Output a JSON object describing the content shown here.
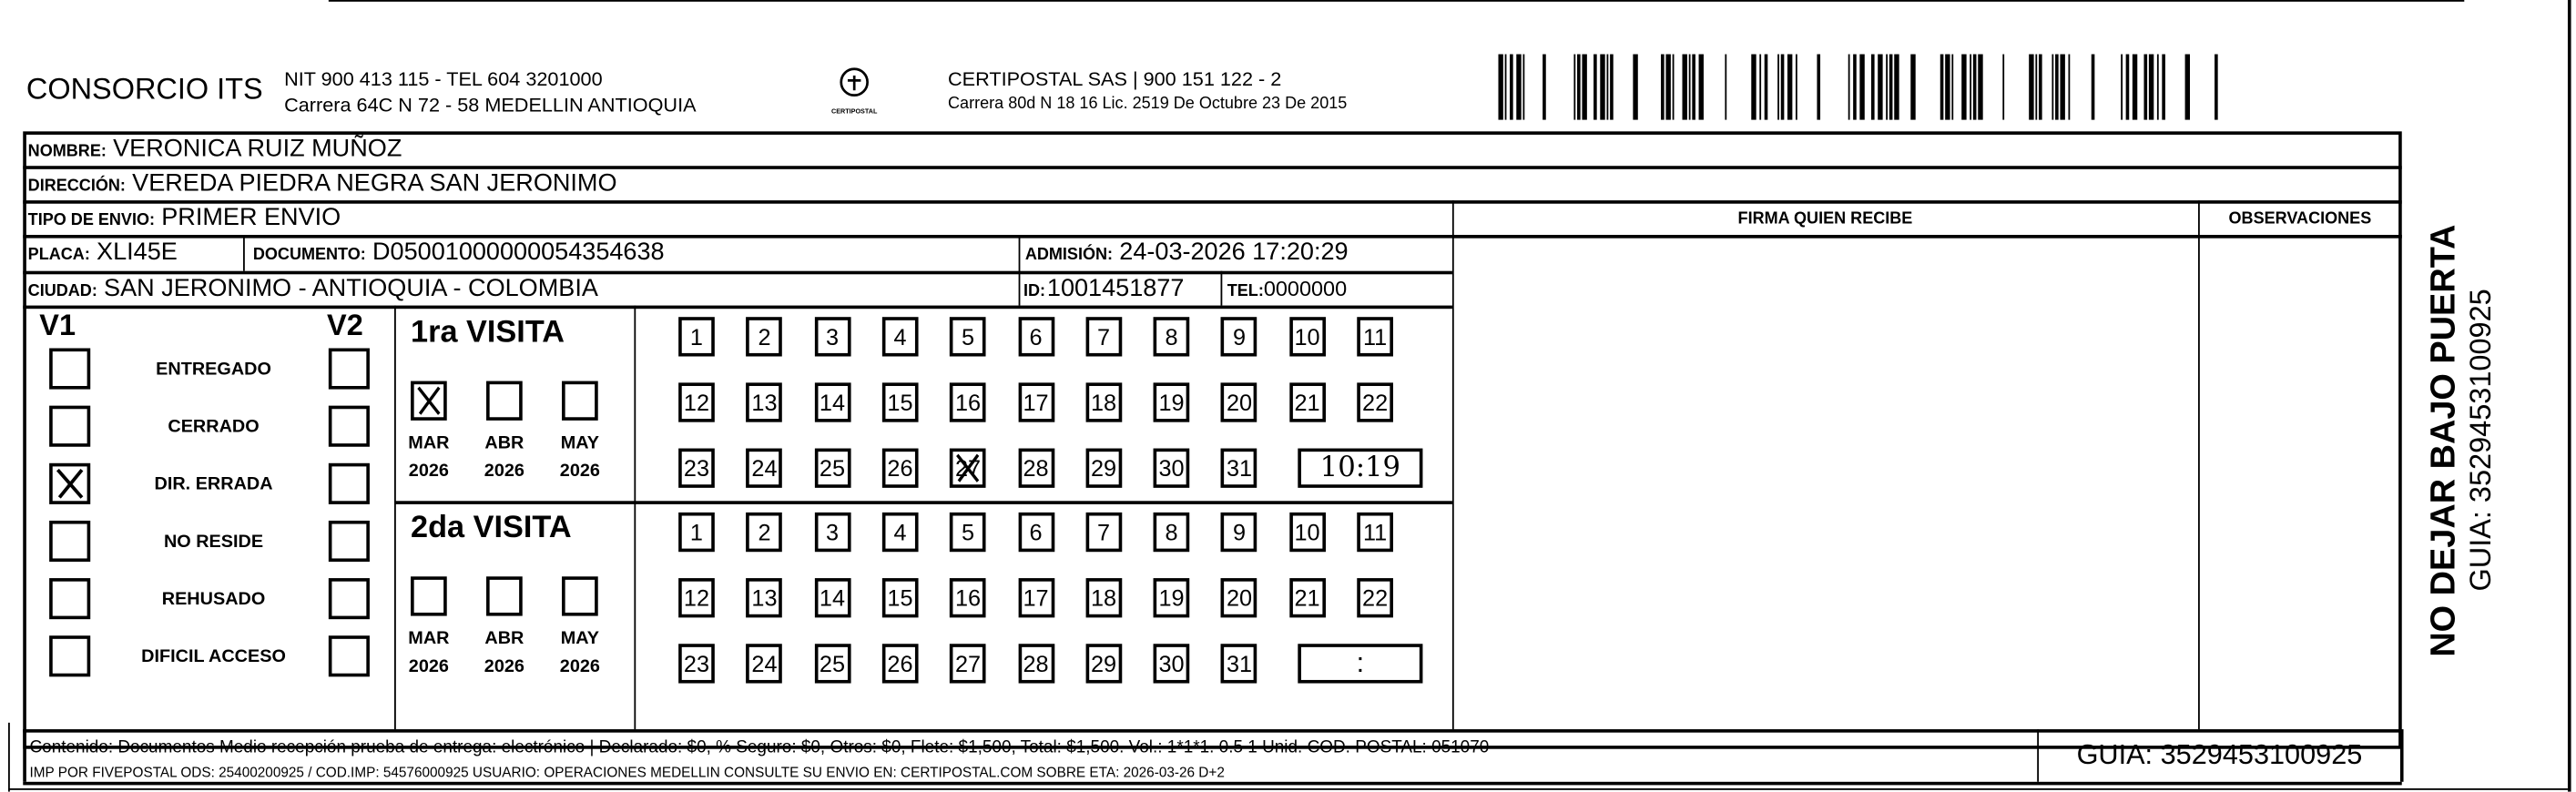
{
  "header": {
    "company": "CONSORCIO ITS",
    "company_line1": "NIT 900 413 115 - TEL 604 3201000",
    "company_line2": "Carrera 64C N 72 - 58 MEDELLIN ANTIOQUIA",
    "logo_text": "CERTIPOSTAL",
    "carrier_line1": "CERTIPOSTAL SAS | 900 151 122 - 2",
    "carrier_line2": "Carrera 80d N 18 16  Lic. 2519 De Octubre 23 De 2015",
    "barcode_icon": "barcode-icon"
  },
  "recipient": {
    "nombre_label": "NOMBRE:",
    "nombre": "VERONICA RUIZ MUÑOZ",
    "direccion_label": "DIRECCIÓN:",
    "direccion": "VEREDA PIEDRA NEGRA SAN JERONIMO",
    "tipo_label": "TIPO DE ENVIO:",
    "tipo": "PRIMER ENVIO",
    "placa_label": "PLACA:",
    "placa": "XLI45E",
    "documento_label": "DOCUMENTO:",
    "documento": "D05001000000054354638",
    "admision_label": "ADMISIÓN:",
    "admision": "24-03-2026 17:20:29",
    "ciudad_label": "CIUDAD:",
    "ciudad": "SAN JERONIMO - ANTIOQUIA - COLOMBIA",
    "id_label": "ID:",
    "id": "1001451877",
    "tel_label": "TEL:",
    "tel": "0000000"
  },
  "columns": {
    "firma": "FIRMA QUIEN RECIBE",
    "observaciones": "OBSERVACIONES"
  },
  "status": {
    "v1_label": "V1",
    "v2_label": "V2",
    "items": [
      {
        "label": "ENTREGADO",
        "v1": false,
        "v2": false
      },
      {
        "label": "CERRADO",
        "v1": false,
        "v2": false
      },
      {
        "label": "DIR. ERRADA",
        "v1": true,
        "v2": false
      },
      {
        "label": "NO RESIDE",
        "v1": false,
        "v2": false
      },
      {
        "label": "REHUSADO",
        "v1": false,
        "v2": false
      },
      {
        "label": "DIFICIL ACCESO",
        "v1": false,
        "v2": false
      }
    ]
  },
  "visits": [
    {
      "title": "1ra VISITA",
      "months": [
        {
          "m": "MAR",
          "y": "2026",
          "checked": true
        },
        {
          "m": "ABR",
          "y": "2026",
          "checked": false
        },
        {
          "m": "MAY",
          "y": "2026",
          "checked": false
        }
      ],
      "marked_day": 27,
      "time": "10:19"
    },
    {
      "title": "2da VISITA",
      "months": [
        {
          "m": "MAR",
          "y": "2026",
          "checked": false
        },
        {
          "m": "ABR",
          "y": "2026",
          "checked": false
        },
        {
          "m": "MAY",
          "y": "2026",
          "checked": false
        }
      ],
      "marked_day": null,
      "time": ":"
    }
  ],
  "days": [
    1,
    2,
    3,
    4,
    5,
    6,
    7,
    8,
    9,
    10,
    11,
    12,
    13,
    14,
    15,
    16,
    17,
    18,
    19,
    20,
    21,
    22,
    23,
    24,
    25,
    26,
    27,
    28,
    29,
    30,
    31
  ],
  "footer": {
    "line1": "Contenido: Documentos Medio recepción prueba de entrega: electrónico | Declarado: $0, % Seguro: $0, Otros: $0, Flete: $1,500, Total: $1,500. Vol.: 1*1*1. 0.5  1 Unid. COD. POSTAL: 051070",
    "line2": "IMP POR FIVEPOSTAL ODS: 25400200925 / COD.IMP: 54576000925 USUARIO: OPERACIONES MEDELLIN CONSULTE SU ENVIO EN: CERTIPOSTAL.COM SOBRE ETA: 2026-03-26 D+2",
    "guia": "GUIA: 3529453100925"
  },
  "side": {
    "warning": "NO DEJAR BAJO PUERTA",
    "guia": "GUIA: 3529453100925"
  }
}
